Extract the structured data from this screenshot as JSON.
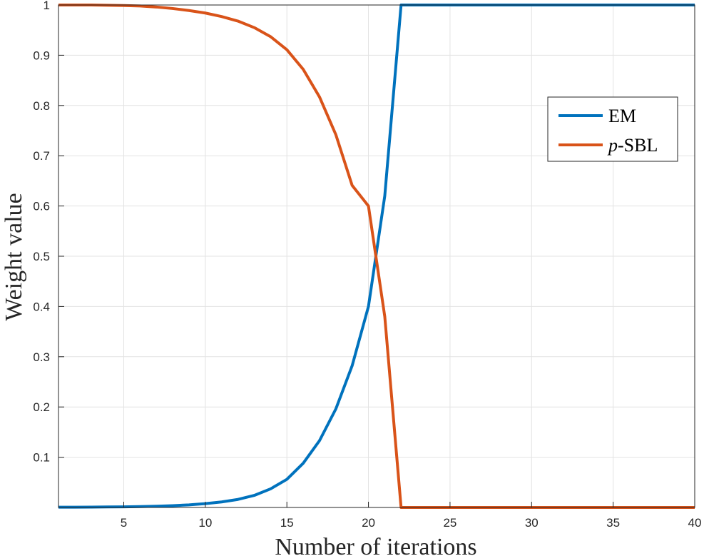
{
  "chart_data": {
    "type": "line",
    "title": "",
    "xlabel": "Number of iterations",
    "ylabel": "Weight value",
    "xlim": [
      1,
      40
    ],
    "ylim": [
      0,
      1
    ],
    "grid": true,
    "x_ticks": [
      5,
      10,
      15,
      20,
      25,
      30,
      35,
      40
    ],
    "y_ticks": [
      0.1,
      0.2,
      0.3,
      0.4,
      0.5,
      0.6,
      0.7,
      0.8,
      0.9,
      1
    ],
    "x_tick_labels": [
      "5",
      "10",
      "15",
      "20",
      "25",
      "30",
      "35",
      "40"
    ],
    "y_tick_labels": [
      "0.1",
      "0.2",
      "0.3",
      "0.4",
      "0.5",
      "0.6",
      "0.7",
      "0.8",
      "0.9",
      "1"
    ],
    "legend_position": "upper-right",
    "x": [
      1,
      2,
      3,
      4,
      5,
      6,
      7,
      8,
      9,
      10,
      11,
      12,
      13,
      14,
      15,
      16,
      17,
      18,
      19,
      20,
      21,
      22,
      23,
      24,
      25,
      26,
      27,
      28,
      29,
      30,
      31,
      32,
      33,
      34,
      35,
      36,
      37,
      38,
      39,
      40
    ],
    "series": [
      {
        "name": "EM",
        "color": "#0072bd",
        "values": [
          0.0005,
          0.0006,
          0.0008,
          0.001,
          0.0013,
          0.0018,
          0.0025,
          0.0036,
          0.0052,
          0.0076,
          0.011,
          0.016,
          0.024,
          0.037,
          0.056,
          0.088,
          0.133,
          0.196,
          0.282,
          0.4,
          0.62,
          1,
          1,
          1,
          1,
          1,
          1,
          1,
          1,
          1,
          1,
          1,
          1,
          1,
          1,
          1,
          1,
          1,
          1,
          1
        ]
      },
      {
        "name": "p-SBL",
        "name_italic": "p",
        "name_rest": "-SBL",
        "color": "#d95319",
        "values": [
          1,
          1,
          1,
          0.9995,
          0.999,
          0.998,
          0.996,
          0.993,
          0.989,
          0.984,
          0.977,
          0.968,
          0.955,
          0.937,
          0.911,
          0.872,
          0.817,
          0.742,
          0.641,
          0.6,
          0.38,
          0,
          0,
          0,
          0,
          0,
          0,
          0,
          0,
          0,
          0,
          0,
          0,
          0,
          0,
          0,
          0,
          0,
          0,
          0
        ]
      }
    ]
  }
}
